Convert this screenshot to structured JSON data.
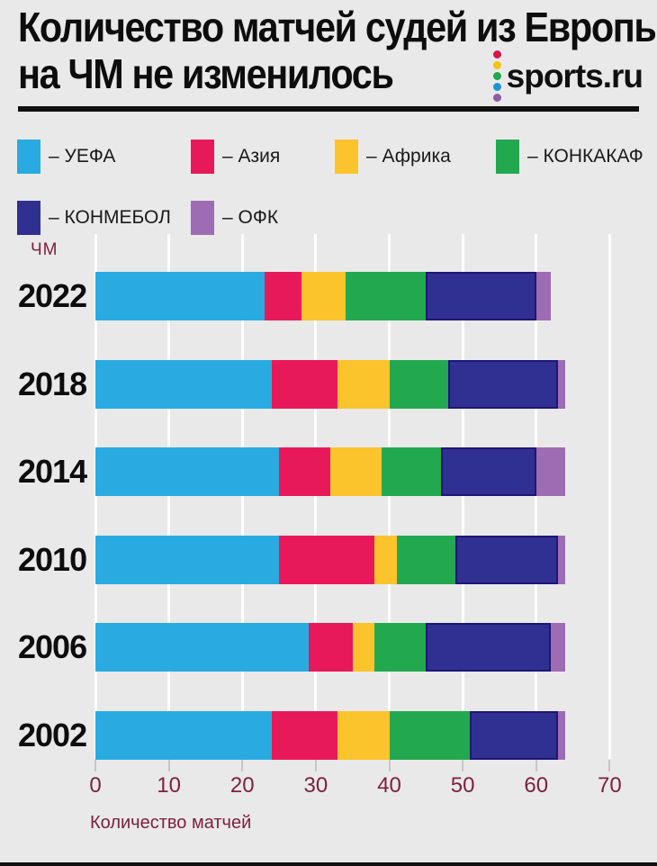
{
  "header": {
    "title_line1": "Количество матчей судей из Европы",
    "title_line2": "на ЧМ не изменилось",
    "logo_text": "sports.ru",
    "logo_dot_colors": [
      "#D6164C",
      "#F2C318",
      "#1FA84D",
      "#1F94D2",
      "#8E5BA6"
    ]
  },
  "legend": [
    {
      "label": "– УЕФА",
      "color": "#29ABE2"
    },
    {
      "label": "– Азия",
      "color": "#E8195B"
    },
    {
      "label": "– Африка",
      "color": "#FBC32C"
    },
    {
      "label": "– КОНКАКАФ",
      "color": "#22A950"
    },
    {
      "label": "– КОНМЕБОЛ",
      "color": "#303092",
      "border": "#1E1677"
    },
    {
      "label": "– ОФК",
      "color": "#9E6CB2"
    }
  ],
  "chart_data": {
    "type": "bar",
    "orientation": "horizontal_stacked",
    "corner_label": "ЧМ",
    "categories": [
      "2022",
      "2018",
      "2014",
      "2010",
      "2006",
      "2002"
    ],
    "series": [
      {
        "name": "УЕФА",
        "color": "#29ABE2",
        "values": [
          23,
          24,
          25,
          25,
          29,
          24
        ]
      },
      {
        "name": "Азия",
        "color": "#E8195B",
        "values": [
          5,
          9,
          7,
          13,
          6,
          9
        ]
      },
      {
        "name": "Африка",
        "color": "#FBC32C",
        "values": [
          6,
          7,
          7,
          3,
          3,
          7
        ]
      },
      {
        "name": "КОНКАКАФ",
        "color": "#22A950",
        "values": [
          11,
          8,
          8,
          8,
          7,
          11
        ]
      },
      {
        "name": "КОНМЕБОЛ",
        "color": "#303092",
        "values": [
          15,
          15,
          13,
          14,
          17,
          12
        ],
        "border": "#1E1677"
      },
      {
        "name": "ОФК",
        "color": "#9E6CB2",
        "values": [
          2,
          1,
          4,
          1,
          2,
          1
        ]
      }
    ],
    "x_ticks": [
      0,
      10,
      20,
      30,
      40,
      50,
      60,
      70
    ],
    "xlim": [
      0,
      70
    ],
    "xlabel": "Количество матчей",
    "grid": true,
    "legend_position": "top"
  }
}
